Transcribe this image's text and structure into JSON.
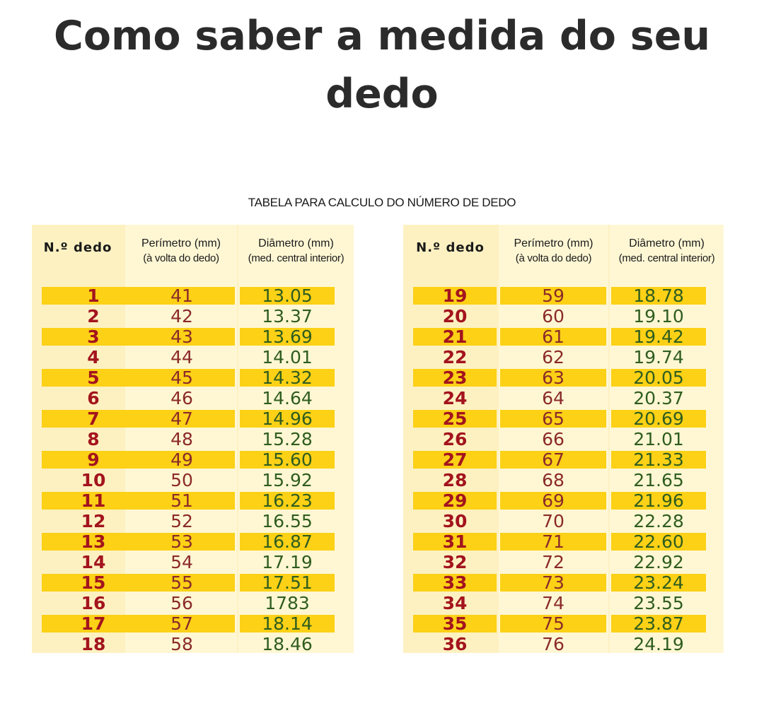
{
  "title": "Como saber a medida do seu dedo",
  "caption": "TABELA PARA CALCULO DO NÚMERO DE DEDO",
  "headers": {
    "number": "N.º dedo",
    "perimeter": "Perímetro (mm)",
    "perimeter_sub": "(à volta do dedo)",
    "diameter": "Diâmetro (mm)",
    "diameter_sub": "(med. central interior)"
  },
  "left_rows": [
    {
      "n": "1",
      "p": "41",
      "d": "13.05"
    },
    {
      "n": "2",
      "p": "42",
      "d": "13.37"
    },
    {
      "n": "3",
      "p": "43",
      "d": "13.69"
    },
    {
      "n": "4",
      "p": "44",
      "d": "14.01"
    },
    {
      "n": "5",
      "p": "45",
      "d": "14.32"
    },
    {
      "n": "6",
      "p": "46",
      "d": "14.64"
    },
    {
      "n": "7",
      "p": "47",
      "d": "14.96"
    },
    {
      "n": "8",
      "p": "48",
      "d": "15.28"
    },
    {
      "n": "9",
      "p": "49",
      "d": "15.60"
    },
    {
      "n": "10",
      "p": "50",
      "d": "15.92"
    },
    {
      "n": "11",
      "p": "51",
      "d": "16.23"
    },
    {
      "n": "12",
      "p": "52",
      "d": "16.55"
    },
    {
      "n": "13",
      "p": "53",
      "d": "16.87"
    },
    {
      "n": "14",
      "p": "54",
      "d": "17.19"
    },
    {
      "n": "15",
      "p": "55",
      "d": "17.51"
    },
    {
      "n": "16",
      "p": "56",
      "d": "1783"
    },
    {
      "n": "17",
      "p": "57",
      "d": "18.14"
    },
    {
      "n": "18",
      "p": "58",
      "d": "18.46"
    }
  ],
  "right_rows": [
    {
      "n": "19",
      "p": "59",
      "d": "18.78"
    },
    {
      "n": "20",
      "p": "60",
      "d": "19.10"
    },
    {
      "n": "21",
      "p": "61",
      "d": "19.42"
    },
    {
      "n": "22",
      "p": "62",
      "d": "19.74"
    },
    {
      "n": "23",
      "p": "63",
      "d": "20.05"
    },
    {
      "n": "24",
      "p": "64",
      "d": "20.37"
    },
    {
      "n": "25",
      "p": "65",
      "d": "20.69"
    },
    {
      "n": "26",
      "p": "66",
      "d": "21.01"
    },
    {
      "n": "27",
      "p": "67",
      "d": "21.33"
    },
    {
      "n": "28",
      "p": "68",
      "d": "21.65"
    },
    {
      "n": "29",
      "p": "69",
      "d": "21.96"
    },
    {
      "n": "30",
      "p": "70",
      "d": "22.28"
    },
    {
      "n": "31",
      "p": "71",
      "d": "22.60"
    },
    {
      "n": "32",
      "p": "72",
      "d": "22.92"
    },
    {
      "n": "33",
      "p": "73",
      "d": "23.24"
    },
    {
      "n": "34",
      "p": "74",
      "d": "23.55"
    },
    {
      "n": "35",
      "p": "75",
      "d": "23.87"
    },
    {
      "n": "36",
      "p": "76",
      "d": "24.19"
    }
  ],
  "colors": {
    "panel": "#fdf1c2",
    "band": "#fcd116",
    "number_text": "#a3141e",
    "perimeter_text": "#8b2a2a",
    "diameter_text": "#2f5d1f"
  }
}
